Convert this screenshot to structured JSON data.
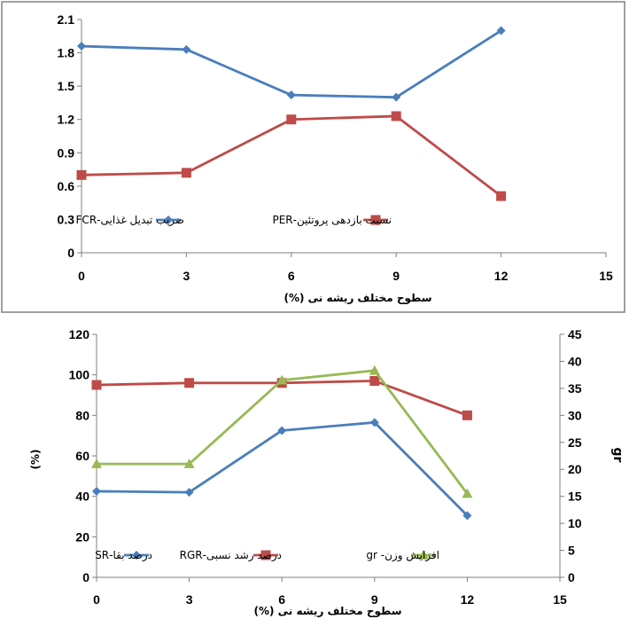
{
  "colors": {
    "blue": "#4a7ebb",
    "red": "#be4b48",
    "green": "#98b954"
  },
  "chart_data": [
    {
      "type": "line",
      "x": [
        0,
        3,
        6,
        9,
        12
      ],
      "xlim": [
        0,
        15
      ],
      "xticks": [
        "0",
        "3",
        "6",
        "9",
        "12",
        "15"
      ],
      "ylim": [
        0,
        2.1
      ],
      "yticks": [
        "0",
        "0.3",
        "0.6",
        "0.9",
        "1.2",
        "1.5",
        "1.8",
        "2.1"
      ],
      "xlabel": "سطوح مختلف ریشه نی (%)",
      "ylabel": "",
      "grid": false,
      "legend": "inside-center",
      "series": [
        {
          "name": "ضریب تبدیل غذایی-FCR",
          "color": "#4a7ebb",
          "marker": "diamond",
          "values": [
            1.86,
            1.83,
            1.42,
            1.4,
            2.0
          ]
        },
        {
          "name": "نسبت بازدهی پروتئین-PER",
          "color": "#be4b48",
          "marker": "square",
          "values": [
            0.7,
            0.72,
            1.2,
            1.23,
            0.51
          ]
        }
      ]
    },
    {
      "type": "line",
      "x": [
        0,
        3,
        6,
        9,
        12
      ],
      "xlim": [
        0,
        15
      ],
      "xticks": [
        "0",
        "3",
        "6",
        "9",
        "12",
        "15"
      ],
      "ylim": [
        0,
        120
      ],
      "yticks": [
        "0",
        "20",
        "40",
        "60",
        "80",
        "100",
        "120"
      ],
      "y2lim": [
        0,
        45
      ],
      "y2ticks": [
        "0",
        "5",
        "10",
        "15",
        "20",
        "25",
        "30",
        "35",
        "40",
        "45"
      ],
      "xlabel": "سطوح مختلف ریشه نی (%)",
      "ylabel": "(%)",
      "y2label": "gr",
      "grid": false,
      "legend": "bottom-inside",
      "series": [
        {
          "name": "درصد بقا-SR",
          "axis": "left",
          "color": "#4a7ebb",
          "marker": "diamond",
          "values": [
            42.5,
            42.0,
            72.5,
            76.5,
            30.5
          ]
        },
        {
          "name": "درصد رشد نسبی-RGR",
          "axis": "left",
          "color": "#be4b48",
          "marker": "square",
          "values": [
            95,
            96,
            96,
            97,
            80
          ]
        },
        {
          "name": "افزایش وزن- gr",
          "axis": "right",
          "color": "#98b954",
          "marker": "triangle",
          "values": [
            21,
            21,
            36.5,
            38.3,
            15.5
          ]
        }
      ]
    }
  ]
}
